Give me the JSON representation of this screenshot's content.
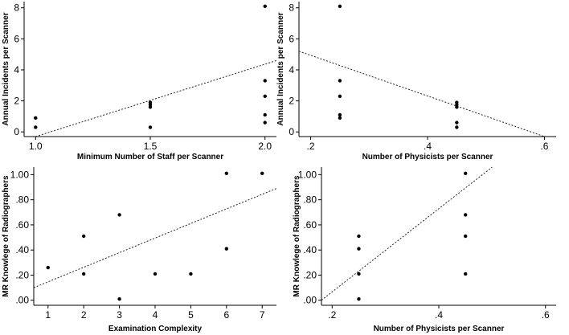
{
  "chart_data": [
    {
      "type": "scatter",
      "xlabel": "Minimum Number of Staff per Scanner",
      "ylabel": "Annual Incidents per Scanner",
      "xlim": [
        0.95,
        2.05
      ],
      "ylim": [
        -0.3,
        8.4
      ],
      "xticks": [
        1.0,
        1.5,
        2.0
      ],
      "xtick_labels": [
        "1.0",
        "1.5",
        "2.0"
      ],
      "yticks": [
        0,
        2,
        4,
        6,
        8
      ],
      "ytick_labels": [
        "0",
        "2",
        "4",
        "6",
        "8"
      ],
      "points": [
        {
          "x": 1.0,
          "y": 0.9
        },
        {
          "x": 1.0,
          "y": 0.3
        },
        {
          "x": 1.5,
          "y": 1.9
        },
        {
          "x": 1.5,
          "y": 1.75
        },
        {
          "x": 1.5,
          "y": 1.6
        },
        {
          "x": 1.5,
          "y": 0.3
        },
        {
          "x": 2.0,
          "y": 8.1
        },
        {
          "x": 2.0,
          "y": 3.3
        },
        {
          "x": 2.0,
          "y": 2.3
        },
        {
          "x": 2.0,
          "y": 1.1
        },
        {
          "x": 2.0,
          "y": 0.6
        }
      ],
      "fit_line": [
        {
          "x": 1.0,
          "y": -0.3
        },
        {
          "x": 2.05,
          "y": 4.6
        }
      ],
      "grid": false
    },
    {
      "type": "scatter",
      "xlabel": "Number of Physicists per Scanner",
      "ylabel": "Annual Incidents per Scanner",
      "xlim": [
        0.18,
        0.62
      ],
      "ylim": [
        -0.3,
        8.4
      ],
      "xticks": [
        0.2,
        0.4,
        0.6
      ],
      "xtick_labels": [
        ".2",
        ".4",
        ".6"
      ],
      "yticks": [
        0,
        2,
        4,
        6,
        8
      ],
      "ytick_labels": [
        "0",
        "2",
        "4",
        "6",
        "8"
      ],
      "points": [
        {
          "x": 0.25,
          "y": 8.1
        },
        {
          "x": 0.25,
          "y": 3.3
        },
        {
          "x": 0.25,
          "y": 2.3
        },
        {
          "x": 0.25,
          "y": 1.1
        },
        {
          "x": 0.25,
          "y": 0.9
        },
        {
          "x": 0.45,
          "y": 1.9
        },
        {
          "x": 0.45,
          "y": 1.75
        },
        {
          "x": 0.45,
          "y": 1.6
        },
        {
          "x": 0.45,
          "y": 0.6
        },
        {
          "x": 0.45,
          "y": 0.3
        }
      ],
      "fit_line": [
        {
          "x": 0.18,
          "y": 5.2
        },
        {
          "x": 0.6,
          "y": -0.3
        }
      ],
      "grid": false
    },
    {
      "type": "scatter",
      "xlabel": "Examination Complexity",
      "ylabel": "MR Knowlege of Radiographers",
      "xlim": [
        0.6,
        7.4
      ],
      "ylim": [
        -0.04,
        1.06
      ],
      "xticks": [
        1,
        2,
        3,
        4,
        5,
        6,
        7
      ],
      "xtick_labels": [
        "1",
        "2",
        "3",
        "4",
        "5",
        "6",
        "7"
      ],
      "yticks": [
        0,
        0.2,
        0.4,
        0.6,
        0.8,
        1.0
      ],
      "ytick_labels": [
        ".00",
        ".20",
        ".40",
        ".60",
        ".80",
        "1.00"
      ],
      "points": [
        {
          "x": 1,
          "y": 0.26
        },
        {
          "x": 2,
          "y": 0.51
        },
        {
          "x": 2,
          "y": 0.21
        },
        {
          "x": 3,
          "y": 0.68
        },
        {
          "x": 3,
          "y": 0.01
        },
        {
          "x": 4,
          "y": 0.21
        },
        {
          "x": 5,
          "y": 0.21
        },
        {
          "x": 6,
          "y": 1.01
        },
        {
          "x": 6,
          "y": 0.41
        },
        {
          "x": 7,
          "y": 1.01
        }
      ],
      "fit_line": [
        {
          "x": 0.6,
          "y": 0.1
        },
        {
          "x": 7.4,
          "y": 0.89
        }
      ],
      "grid": false
    },
    {
      "type": "scatter",
      "xlabel": "Number of Physicists per Scanner",
      "ylabel": "MR Knowlege of Radiographers",
      "xlim": [
        0.18,
        0.62
      ],
      "ylim": [
        -0.04,
        1.06
      ],
      "xticks": [
        0.2,
        0.4,
        0.6
      ],
      "xtick_labels": [
        ".2",
        ".4",
        ".6"
      ],
      "yticks": [
        0,
        0.2,
        0.4,
        0.6,
        0.8,
        1.0
      ],
      "ytick_labels": [
        ".00",
        ".20",
        ".40",
        ".60",
        ".80",
        "1.00"
      ],
      "points": [
        {
          "x": 0.25,
          "y": 0.51
        },
        {
          "x": 0.25,
          "y": 0.41
        },
        {
          "x": 0.25,
          "y": 0.21
        },
        {
          "x": 0.25,
          "y": 0.01
        },
        {
          "x": 0.45,
          "y": 1.01
        },
        {
          "x": 0.45,
          "y": 0.68
        },
        {
          "x": 0.45,
          "y": 0.51
        },
        {
          "x": 0.45,
          "y": 0.21
        }
      ],
      "fit_line": [
        {
          "x": 0.18,
          "y": 0.0
        },
        {
          "x": 0.5,
          "y": 1.06
        }
      ],
      "grid": false
    }
  ]
}
